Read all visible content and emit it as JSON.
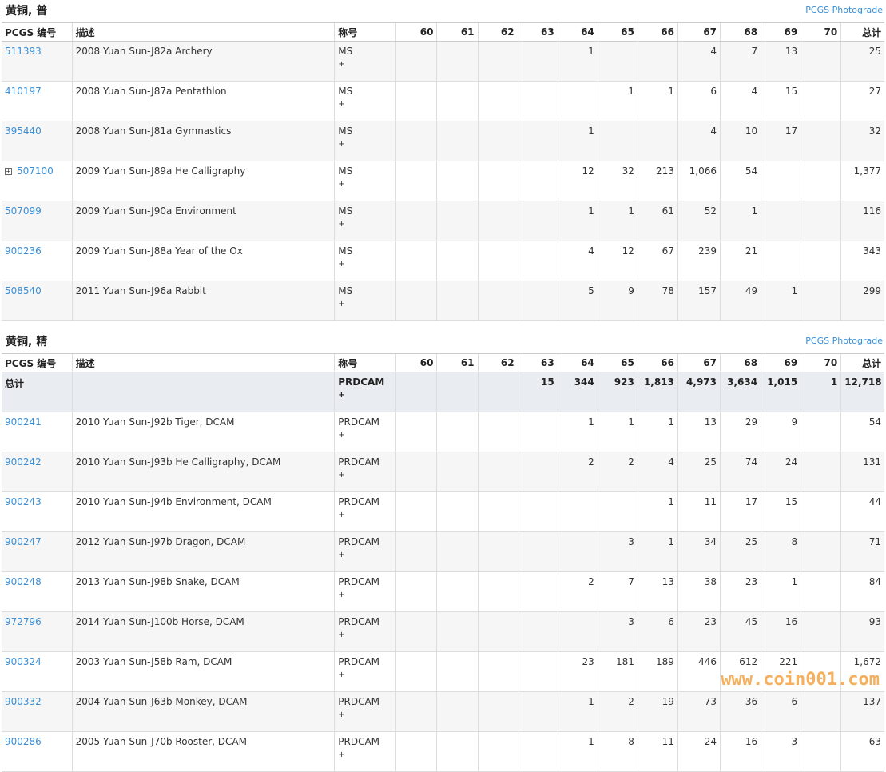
{
  "sections": [
    {
      "title": "黄铜, 普",
      "link": "PCGS Photograde",
      "headers": [
        "PCGS 编号",
        "描述",
        "称号",
        "60",
        "61",
        "62",
        "63",
        "64",
        "65",
        "66",
        "67",
        "68",
        "69",
        "70",
        "总计"
      ],
      "rows": [
        {
          "id": "511393",
          "desc": "2008 Yuan Sun-J82a Archery",
          "designation": "MS",
          "plus": "+",
          "counts": [
            null,
            null,
            null,
            null,
            "1",
            null,
            null,
            "4",
            "7",
            "13",
            null
          ],
          "total": "25"
        },
        {
          "id": "410197",
          "desc": "2008 Yuan Sun-J87a Pentathlon",
          "designation": "MS",
          "plus": "+",
          "counts": [
            null,
            null,
            null,
            null,
            null,
            "1",
            "1",
            "6",
            "4",
            "15",
            null
          ],
          "total": "27"
        },
        {
          "id": "395440",
          "desc": "2008 Yuan Sun-J81a Gymnastics",
          "designation": "MS",
          "plus": "+",
          "counts": [
            null,
            null,
            null,
            null,
            "1",
            null,
            null,
            "4",
            "10",
            "17",
            null
          ],
          "total": "32"
        },
        {
          "id": "507100",
          "desc": "2009 Yuan Sun-J89a He Calligraphy",
          "designation": "MS",
          "plus": "+",
          "counts": [
            null,
            null,
            null,
            null,
            "12",
            "32",
            "213",
            "1,066",
            "54",
            null,
            null
          ],
          "total": "1,377"
        },
        {
          "id": "507099",
          "desc": "2009 Yuan Sun-J90a Environment",
          "designation": "MS",
          "plus": "+",
          "counts": [
            null,
            null,
            null,
            null,
            "1",
            "1",
            "61",
            "52",
            "1",
            null,
            null
          ],
          "total": "116"
        },
        {
          "id": "900236",
          "desc": "2009 Yuan Sun-J88a Year of the Ox",
          "designation": "MS",
          "plus": "+",
          "counts": [
            null,
            null,
            null,
            null,
            "4",
            "12",
            "67",
            "239",
            "21",
            null,
            null
          ],
          "total": "343"
        },
        {
          "id": "508540",
          "desc": "2011 Yuan Sun-J96a Rabbit",
          "designation": "MS",
          "plus": "+",
          "counts": [
            null,
            null,
            null,
            null,
            "5",
            "9",
            "78",
            "157",
            "49",
            "1",
            null
          ],
          "total": "299"
        }
      ]
    },
    {
      "title": "黄铜, 精",
      "link": "PCGS Photograde",
      "headers": [
        "PCGS 编号",
        "描述",
        "称号",
        "60",
        "61",
        "62",
        "63",
        "64",
        "65",
        "66",
        "67",
        "68",
        "69",
        "70",
        "总计"
      ],
      "total_row": {
        "id": "总计",
        "designation": "PRDCAM",
        "plus": "+",
        "counts": [
          null,
          null,
          null,
          "15",
          "344",
          "923",
          "1,813",
          "4,973",
          "3,634",
          "1,015",
          "1"
        ],
        "total": "12,718"
      },
      "rows": [
        {
          "id": "900241",
          "desc": "2010 Yuan Sun-J92b Tiger, DCAM",
          "designation": "PRDCAM",
          "plus": "+",
          "counts": [
            null,
            null,
            null,
            null,
            "1",
            "1",
            "1",
            "13",
            "29",
            "9",
            null
          ],
          "total": "54"
        },
        {
          "id": "900242",
          "desc": "2010 Yuan Sun-J93b He Calligraphy, DCAM",
          "designation": "PRDCAM",
          "plus": "+",
          "counts": [
            null,
            null,
            null,
            null,
            "2",
            "2",
            "4",
            "25",
            "74",
            "24",
            null
          ],
          "total": "131"
        },
        {
          "id": "900243",
          "desc": "2010 Yuan Sun-J94b Environment, DCAM",
          "designation": "PRDCAM",
          "plus": "+",
          "counts": [
            null,
            null,
            null,
            null,
            null,
            null,
            "1",
            "11",
            "17",
            "15",
            null
          ],
          "total": "44"
        },
        {
          "id": "900247",
          "desc": "2012 Yuan Sun-J97b Dragon, DCAM",
          "designation": "PRDCAM",
          "plus": "+",
          "counts": [
            null,
            null,
            null,
            null,
            null,
            "3",
            "1",
            "34",
            "25",
            "8",
            null
          ],
          "total": "71"
        },
        {
          "id": "900248",
          "desc": "2013 Yuan Sun-J98b Snake, DCAM",
          "designation": "PRDCAM",
          "plus": "+",
          "counts": [
            null,
            null,
            null,
            null,
            "2",
            "7",
            "13",
            "38",
            "23",
            "1",
            null
          ],
          "total": "84"
        },
        {
          "id": "972796",
          "desc": "2014 Yuan Sun-J100b Horse, DCAM",
          "designation": "PRDCAM",
          "plus": "+",
          "counts": [
            null,
            null,
            null,
            null,
            null,
            "3",
            "6",
            "23",
            "45",
            "16",
            null
          ],
          "total": "93"
        },
        {
          "id": "900324",
          "desc": "2003 Yuan Sun-J58b Ram, DCAM",
          "designation": "PRDCAM",
          "plus": "+",
          "counts": [
            null,
            null,
            null,
            null,
            "23",
            "181",
            "189",
            "446",
            "612",
            "221",
            null
          ],
          "total": "1,672"
        },
        {
          "id": "900332",
          "desc": "2004 Yuan Sun-J63b Monkey, DCAM",
          "designation": "PRDCAM",
          "plus": "+",
          "counts": [
            null,
            null,
            null,
            null,
            "1",
            "2",
            "19",
            "73",
            "36",
            "6",
            null
          ],
          "total": "137"
        },
        {
          "id": "900286",
          "desc": "2005 Yuan Sun-J70b Rooster, DCAM",
          "designation": "PRDCAM",
          "plus": "+",
          "counts": [
            null,
            null,
            null,
            null,
            "1",
            "8",
            "11",
            "24",
            "16",
            "3",
            null
          ],
          "total": "63"
        }
      ]
    }
  ],
  "watermark": "www.coin001.com"
}
